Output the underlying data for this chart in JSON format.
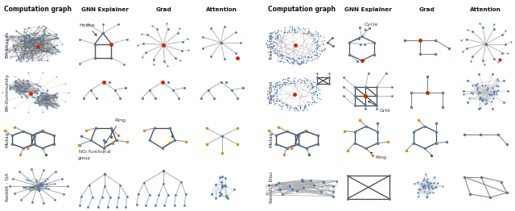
{
  "bg_color": "#d8d8d8",
  "white_bg": "#ffffff",
  "node_blue": "#4a7ab5",
  "node_red": "#cc2200",
  "node_orange": "#e8820a",
  "node_green": "#2d7a2d",
  "edge_gray": "#888888",
  "edge_dark": "#444444",
  "edge_light": "#aaaaaa",
  "lp_row_labels": [
    "BA-Shapes",
    "BA-Community",
    "Mutag",
    "Reddit - QA"
  ],
  "rp_row_labels": [
    "Tree-Cycles",
    "Tree-Grid",
    "Mutag",
    "Reddit - Disc"
  ],
  "col_headers": [
    "Computation graph",
    "GNN Explainer",
    "Grad",
    "Attention"
  ]
}
